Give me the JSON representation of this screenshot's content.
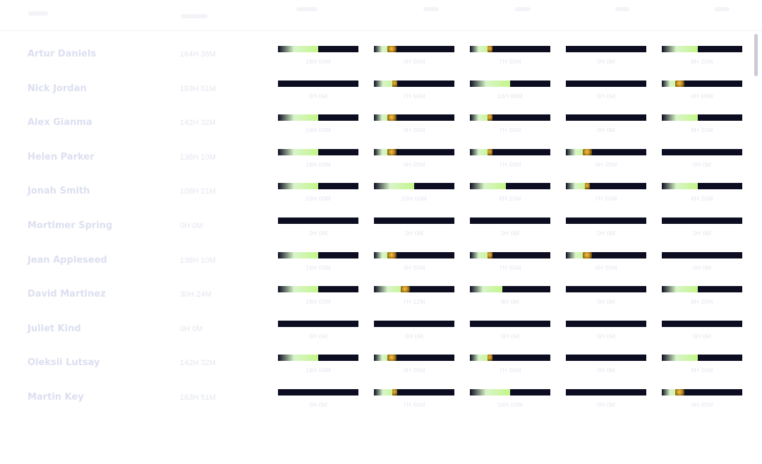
{
  "rows": [
    {
      "name": "Artur Daniels",
      "total": "164H 36M",
      "cells": [
        {
          "label": "16H 00M",
          "pct": 0.5,
          "kind": "fill"
        },
        {
          "label": "4H 05M",
          "pct": 0.25,
          "kind": "big"
        },
        {
          "label": "7H 50M",
          "pct": 0.27,
          "kind": "small"
        },
        {
          "label": "0H 0M",
          "pct": 0,
          "kind": "empty"
        },
        {
          "label": "8H 20M",
          "pct": 0.45,
          "kind": "fill"
        }
      ]
    },
    {
      "name": "Nick Jordan",
      "total": "163H 51M",
      "cells": [
        {
          "label": "0H 0M",
          "pct": 0,
          "kind": "empty"
        },
        {
          "label": "7H 50M",
          "pct": 0.28,
          "kind": "small"
        },
        {
          "label": "16H 00M",
          "pct": 0.5,
          "kind": "fill"
        },
        {
          "label": "0H 0M",
          "pct": 0,
          "kind": "empty"
        },
        {
          "label": "4H 05M",
          "pct": 0.25,
          "kind": "big"
        }
      ]
    },
    {
      "name": "Alex Gianma",
      "total": "142H 32M",
      "cells": [
        {
          "label": "16H 00M",
          "pct": 0.5,
          "kind": "fill"
        },
        {
          "label": "4H 05M",
          "pct": 0.25,
          "kind": "big"
        },
        {
          "label": "7H 50M",
          "pct": 0.27,
          "kind": "small"
        },
        {
          "label": "0H 0M",
          "pct": 0,
          "kind": "empty"
        },
        {
          "label": "8H 20M",
          "pct": 0.45,
          "kind": "fill"
        }
      ]
    },
    {
      "name": "Helen Parker",
      "total": "138H 10M",
      "cells": [
        {
          "label": "16H 00M",
          "pct": 0.5,
          "kind": "fill"
        },
        {
          "label": "4H 05M",
          "pct": 0.25,
          "kind": "big"
        },
        {
          "label": "7H 50M",
          "pct": 0.27,
          "kind": "small"
        },
        {
          "label": "4H 05M",
          "pct": 0.3,
          "kind": "big"
        },
        {
          "label": "0H 0M",
          "pct": 0,
          "kind": "empty"
        }
      ]
    },
    {
      "name": "Jonah Smith",
      "total": "108H 21M",
      "cells": [
        {
          "label": "16H 00M",
          "pct": 0.5,
          "kind": "fill"
        },
        {
          "label": "16H 00M",
          "pct": 0.5,
          "kind": "fill"
        },
        {
          "label": "8H 20M",
          "pct": 0.45,
          "kind": "fill"
        },
        {
          "label": "7H 50M",
          "pct": 0.29,
          "kind": "small"
        },
        {
          "label": "8H 20M",
          "pct": 0.45,
          "kind": "fill"
        }
      ]
    },
    {
      "name": "Mortimer Spring",
      "total": "0H 0M",
      "cells": [
        {
          "label": "0H 0M",
          "pct": 0,
          "kind": "empty"
        },
        {
          "label": "0H 0M",
          "pct": 0,
          "kind": "empty"
        },
        {
          "label": "0H 0M",
          "pct": 0,
          "kind": "empty"
        },
        {
          "label": "0H 0M",
          "pct": 0,
          "kind": "empty"
        },
        {
          "label": "0H 0M",
          "pct": 0,
          "kind": "empty"
        }
      ]
    },
    {
      "name": "Jean Appleseed",
      "total": "138H 10M",
      "cells": [
        {
          "label": "16H 00M",
          "pct": 0.5,
          "kind": "fill"
        },
        {
          "label": "4H 05M",
          "pct": 0.25,
          "kind": "big"
        },
        {
          "label": "7H 50M",
          "pct": 0.27,
          "kind": "small"
        },
        {
          "label": "4H 05M",
          "pct": 0.3,
          "kind": "big"
        },
        {
          "label": "0H 0M",
          "pct": 0,
          "kind": "empty"
        }
      ]
    },
    {
      "name": "David Martinez",
      "total": "30H 24M",
      "cells": [
        {
          "label": "16H 00M",
          "pct": 0.5,
          "kind": "fill"
        },
        {
          "label": "7H 12M",
          "pct": 0.42,
          "kind": "big"
        },
        {
          "label": "8H 0M",
          "pct": 0.4,
          "kind": "fill"
        },
        {
          "label": "0H 0M",
          "pct": 0,
          "kind": "empty"
        },
        {
          "label": "8H 20M",
          "pct": 0.45,
          "kind": "fill"
        }
      ]
    },
    {
      "name": "Juliet Kind",
      "total": "0H 0M",
      "cells": [
        {
          "label": "0H 0M",
          "pct": 0,
          "kind": "empty"
        },
        {
          "label": "0H 0M",
          "pct": 0,
          "kind": "empty"
        },
        {
          "label": "0H 0M",
          "pct": 0,
          "kind": "empty"
        },
        {
          "label": "0H 0M",
          "pct": 0,
          "kind": "empty"
        },
        {
          "label": "0H 0M",
          "pct": 0,
          "kind": "empty"
        }
      ]
    },
    {
      "name": "Oleksii Lutsay",
      "total": "142H 32M",
      "cells": [
        {
          "label": "16H 00M",
          "pct": 0.5,
          "kind": "fill"
        },
        {
          "label": "4H 05M",
          "pct": 0.25,
          "kind": "big"
        },
        {
          "label": "7H 50M",
          "pct": 0.27,
          "kind": "small"
        },
        {
          "label": "0H 0M",
          "pct": 0,
          "kind": "empty"
        },
        {
          "label": "8H 20M",
          "pct": 0.45,
          "kind": "fill"
        }
      ]
    },
    {
      "name": "Martin Key",
      "total": "163H 51M",
      "cells": [
        {
          "label": "0H 0M",
          "pct": 0,
          "kind": "empty"
        },
        {
          "label": "7H 50M",
          "pct": 0.28,
          "kind": "small"
        },
        {
          "label": "16H 00M",
          "pct": 0.5,
          "kind": "fill"
        },
        {
          "label": "0H 0M",
          "pct": 0,
          "kind": "empty"
        },
        {
          "label": "4H 05M",
          "pct": 0.25,
          "kind": "big"
        }
      ]
    }
  ],
  "colors": {
    "track": "#0d0d22",
    "fill_start": "#d8f5c8",
    "fill_end": "#c4f58a",
    "knob": "#c08a18",
    "name_text": "#dcdff0",
    "muted_text": "#e4e6ef"
  }
}
